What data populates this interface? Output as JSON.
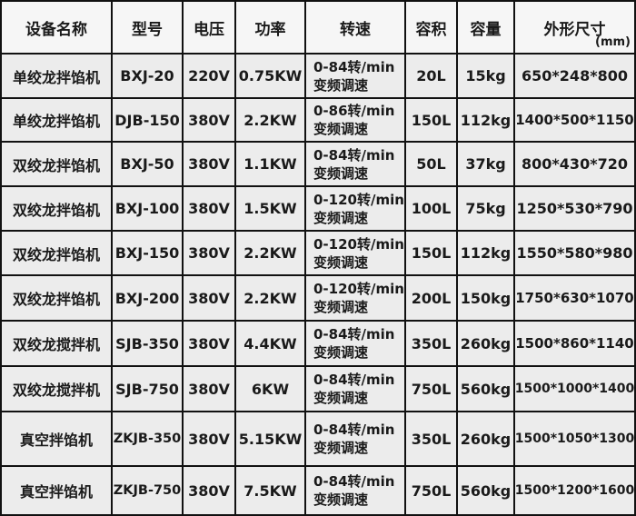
{
  "table": {
    "header": [
      "设备名称",
      "型号",
      "电压",
      "功率",
      "转速",
      "容积",
      "容量",
      "外形尺寸"
    ],
    "unit": "(mm)",
    "rows": [
      [
        "单绞龙拌馅机",
        "BXJ-20",
        "220V",
        "0.75KW",
        [
          "0-84转/min",
          "变频调速"
        ],
        "20L",
        "15kg",
        "650*248*800"
      ],
      [
        "单绞龙拌馅机",
        "DJB-150",
        "380V",
        "2.2KW",
        [
          "0-86转/min",
          "变频调速"
        ],
        "150L",
        "112kg",
        "1400*500*1150"
      ],
      [
        "双绞龙拌馅机",
        "BXJ-50",
        "380V",
        "1.1KW",
        [
          "0-84转/min",
          "变频调速"
        ],
        "50L",
        "37kg",
        "800*430*720"
      ],
      [
        "双绞龙拌馅机",
        "BXJ-100",
        "380V",
        "1.5KW",
        [
          "0-120转/min",
          "变频调速"
        ],
        "100L",
        "75kg",
        "1250*530*790"
      ],
      [
        "双绞龙拌馅机",
        "BXJ-150",
        "380V",
        "2.2KW",
        [
          "0-120转/min",
          "变频调速"
        ],
        "150L",
        "112kg",
        "1550*580*980"
      ],
      [
        "双绞龙拌馅机",
        "BXJ-200",
        "380V",
        "2.2KW",
        [
          "0-120转/min",
          "变频调速"
        ],
        "200L",
        "150kg",
        "1750*630*1070"
      ],
      [
        "双绞龙搅拌机",
        "SJB-350",
        "380V",
        "4.4KW",
        [
          "0-84转/min",
          "变频调速"
        ],
        "350L",
        "260kg",
        "1500*860*1140"
      ],
      [
        "双绞龙搅拌机",
        "SJB-750",
        "380V",
        "6KW",
        [
          "0-84转/min",
          "变频调速"
        ],
        "750L",
        "560kg",
        "1500*1000*1400"
      ],
      [
        "真空拌馅机",
        "ZKJB-350",
        "380V",
        "5.15KW",
        [
          "0-84转/min",
          "变频调速"
        ],
        "350L",
        "260kg",
        "1500*1050*1300"
      ],
      [
        "真空拌馅机",
        "ZKJB-750",
        "380V",
        "7.5KW",
        [
          "0-84转/min",
          "变频调速"
        ],
        "750L",
        "560kg",
        "1500*1200*1600"
      ]
    ]
  }
}
